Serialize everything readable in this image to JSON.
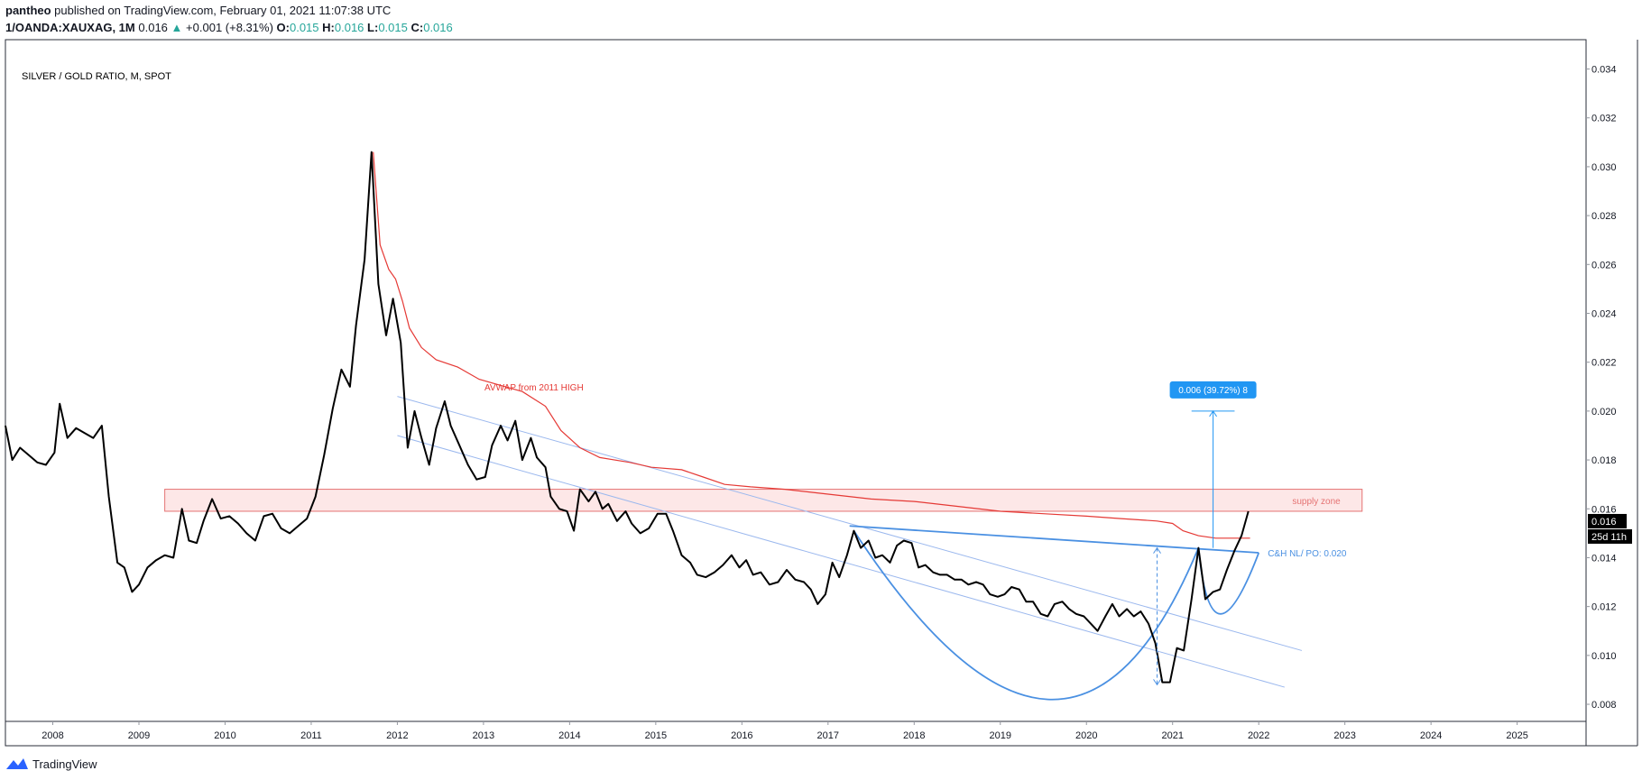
{
  "header": {
    "author": "pantheo",
    "published_text": " published on TradingView.com, February 01, 2021 11:07:38 UTC",
    "symbol": "1/OANDA:XAUXAG, 1M",
    "last": "0.016",
    "change_arrow": "▲",
    "change": "+0.001 (+8.31%)",
    "o_label": "O:",
    "o_value": "0.015",
    "h_label": "H:",
    "h_value": "0.016",
    "l_label": "L:",
    "l_value": "0.015",
    "c_label": "C:",
    "c_value": "0.016"
  },
  "footer": {
    "brand": "TradingView",
    "logo_icon": "tradingview-logo-icon"
  },
  "colors": {
    "price_line": "#000000",
    "avwap": "#e53935",
    "cup_handle": "#4a90e2",
    "channel": "#9bb8ee",
    "supply_fill": "#fde3e3",
    "supply_border": "#e57373",
    "measure": "#2196f3",
    "last_price_bg": "#000000"
  },
  "chart_data": {
    "type": "line",
    "title": "SILVER / GOLD RATIO, M, SPOT",
    "xlabel": "",
    "ylabel": "",
    "x_range": [
      2007.45,
      2025.8
    ],
    "ylim": [
      0.0073,
      0.0352
    ],
    "grid": false,
    "x_ticks": [
      "2008",
      "2009",
      "2010",
      "2011",
      "2012",
      "2013",
      "2014",
      "2015",
      "2016",
      "2017",
      "2018",
      "2019",
      "2020",
      "2021",
      "2022",
      "2023",
      "2024",
      "2025"
    ],
    "y_ticks": [
      "0.008",
      "0.010",
      "0.012",
      "0.014",
      "0.016",
      "0.018",
      "0.020",
      "0.022",
      "0.024",
      "0.026",
      "0.028",
      "0.030",
      "0.032",
      "0.034"
    ],
    "last_price_label": "0.016",
    "countdown_label": "25d 11h",
    "series": [
      {
        "name": "",
        "points": [
          [
            2007.45,
            0.0194
          ],
          [
            2007.53,
            0.018
          ],
          [
            2007.62,
            0.0185
          ],
          [
            2007.72,
            0.0182
          ],
          [
            2007.82,
            0.0179
          ],
          [
            2007.92,
            0.0178
          ],
          [
            2008.02,
            0.0183
          ],
          [
            2008.08,
            0.0203
          ],
          [
            2008.17,
            0.0189
          ],
          [
            2008.27,
            0.0193
          ],
          [
            2008.37,
            0.0191
          ],
          [
            2008.47,
            0.0189
          ],
          [
            2008.57,
            0.0194
          ],
          [
            2008.65,
            0.0165
          ],
          [
            2008.75,
            0.0138
          ],
          [
            2008.83,
            0.0136
          ],
          [
            2008.92,
            0.0126
          ],
          [
            2009.0,
            0.0129
          ],
          [
            2009.1,
            0.0136
          ],
          [
            2009.2,
            0.0139
          ],
          [
            2009.3,
            0.0141
          ],
          [
            2009.4,
            0.014
          ],
          [
            2009.5,
            0.016
          ],
          [
            2009.58,
            0.0147
          ],
          [
            2009.67,
            0.0146
          ],
          [
            2009.75,
            0.0155
          ],
          [
            2009.85,
            0.0164
          ],
          [
            2009.95,
            0.0156
          ],
          [
            2010.05,
            0.0157
          ],
          [
            2010.15,
            0.0154
          ],
          [
            2010.25,
            0.015
          ],
          [
            2010.35,
            0.0147
          ],
          [
            2010.45,
            0.0157
          ],
          [
            2010.55,
            0.0158
          ],
          [
            2010.65,
            0.0152
          ],
          [
            2010.75,
            0.015
          ],
          [
            2010.85,
            0.0153
          ],
          [
            2010.95,
            0.0156
          ],
          [
            2011.05,
            0.0165
          ],
          [
            2011.15,
            0.0182
          ],
          [
            2011.25,
            0.0201
          ],
          [
            2011.35,
            0.0217
          ],
          [
            2011.45,
            0.021
          ],
          [
            2011.52,
            0.0235
          ],
          [
            2011.62,
            0.0262
          ],
          [
            2011.7,
            0.0306
          ],
          [
            2011.78,
            0.0252
          ],
          [
            2011.87,
            0.0231
          ],
          [
            2011.95,
            0.0246
          ],
          [
            2012.04,
            0.0228
          ],
          [
            2012.12,
            0.0185
          ],
          [
            2012.2,
            0.02
          ],
          [
            2012.28,
            0.0189
          ],
          [
            2012.37,
            0.0178
          ],
          [
            2012.45,
            0.0193
          ],
          [
            2012.55,
            0.0204
          ],
          [
            2012.62,
            0.0194
          ],
          [
            2012.72,
            0.0186
          ],
          [
            2012.82,
            0.0178
          ],
          [
            2012.92,
            0.0172
          ],
          [
            2013.02,
            0.0173
          ],
          [
            2013.1,
            0.0186
          ],
          [
            2013.2,
            0.0194
          ],
          [
            2013.28,
            0.0188
          ],
          [
            2013.37,
            0.0196
          ],
          [
            2013.45,
            0.018
          ],
          [
            2013.55,
            0.0189
          ],
          [
            2013.62,
            0.0181
          ],
          [
            2013.72,
            0.0177
          ],
          [
            2013.78,
            0.0165
          ],
          [
            2013.88,
            0.016
          ],
          [
            2013.97,
            0.0159
          ],
          [
            2014.05,
            0.0151
          ],
          [
            2014.12,
            0.0168
          ],
          [
            2014.22,
            0.0163
          ],
          [
            2014.3,
            0.0167
          ],
          [
            2014.38,
            0.016
          ],
          [
            2014.45,
            0.0162
          ],
          [
            2014.55,
            0.0155
          ],
          [
            2014.65,
            0.0159
          ],
          [
            2014.72,
            0.0154
          ],
          [
            2014.82,
            0.015
          ],
          [
            2014.92,
            0.0152
          ],
          [
            2015.02,
            0.0158
          ],
          [
            2015.12,
            0.0158
          ],
          [
            2015.2,
            0.0151
          ],
          [
            2015.3,
            0.0141
          ],
          [
            2015.4,
            0.0138
          ],
          [
            2015.48,
            0.0133
          ],
          [
            2015.58,
            0.0132
          ],
          [
            2015.68,
            0.0134
          ],
          [
            2015.78,
            0.0137
          ],
          [
            2015.88,
            0.0141
          ],
          [
            2015.97,
            0.0136
          ],
          [
            2016.05,
            0.0139
          ],
          [
            2016.13,
            0.0133
          ],
          [
            2016.22,
            0.0134
          ],
          [
            2016.32,
            0.0129
          ],
          [
            2016.42,
            0.013
          ],
          [
            2016.52,
            0.0135
          ],
          [
            2016.62,
            0.0131
          ],
          [
            2016.72,
            0.013
          ],
          [
            2016.8,
            0.0127
          ],
          [
            2016.88,
            0.0121
          ],
          [
            2016.97,
            0.0125
          ],
          [
            2017.05,
            0.0138
          ],
          [
            2017.13,
            0.0132
          ],
          [
            2017.22,
            0.0141
          ],
          [
            2017.3,
            0.0151
          ],
          [
            2017.38,
            0.0144
          ],
          [
            2017.47,
            0.0147
          ],
          [
            2017.55,
            0.014
          ],
          [
            2017.63,
            0.0141
          ],
          [
            2017.72,
            0.0138
          ],
          [
            2017.8,
            0.0145
          ],
          [
            2017.88,
            0.0147
          ],
          [
            2017.97,
            0.0146
          ],
          [
            2018.05,
            0.0136
          ],
          [
            2018.13,
            0.0137
          ],
          [
            2018.22,
            0.0134
          ],
          [
            2018.3,
            0.0133
          ],
          [
            2018.38,
            0.0133
          ],
          [
            2018.47,
            0.0131
          ],
          [
            2018.55,
            0.0131
          ],
          [
            2018.63,
            0.0129
          ],
          [
            2018.72,
            0.013
          ],
          [
            2018.8,
            0.0129
          ],
          [
            2018.88,
            0.0125
          ],
          [
            2018.97,
            0.0124
          ],
          [
            2019.05,
            0.0125
          ],
          [
            2019.13,
            0.0128
          ],
          [
            2019.22,
            0.0127
          ],
          [
            2019.3,
            0.0122
          ],
          [
            2019.38,
            0.0122
          ],
          [
            2019.47,
            0.0117
          ],
          [
            2019.55,
            0.0116
          ],
          [
            2019.63,
            0.0121
          ],
          [
            2019.72,
            0.0122
          ],
          [
            2019.8,
            0.0119
          ],
          [
            2019.88,
            0.0117
          ],
          [
            2019.97,
            0.0116
          ],
          [
            2020.05,
            0.0113
          ],
          [
            2020.13,
            0.011
          ],
          [
            2020.22,
            0.0116
          ],
          [
            2020.3,
            0.0121
          ],
          [
            2020.38,
            0.0116
          ],
          [
            2020.47,
            0.0119
          ],
          [
            2020.55,
            0.0116
          ],
          [
            2020.63,
            0.0118
          ],
          [
            2020.72,
            0.0113
          ],
          [
            2020.8,
            0.0105
          ],
          [
            2020.88,
            0.0089
          ],
          [
            2020.97,
            0.0089
          ],
          [
            2021.05,
            0.0103
          ],
          [
            2021.13,
            0.0102
          ],
          [
            2021.22,
            0.0123
          ],
          [
            2021.3,
            0.0144
          ],
          [
            2021.38,
            0.0123
          ],
          [
            2021.47,
            0.0126
          ],
          [
            2021.55,
            0.0127
          ],
          [
            2021.63,
            0.0135
          ],
          [
            2021.72,
            0.0143
          ],
          [
            2021.8,
            0.0149
          ],
          [
            2021.88,
            0.0159
          ]
        ]
      }
    ],
    "avwap": {
      "name": "AVWAP from 2011 HIGH",
      "points": [
        [
          2011.72,
          0.0306
        ],
        [
          2011.8,
          0.0268
        ],
        [
          2011.9,
          0.0258
        ],
        [
          2011.98,
          0.0254
        ],
        [
          2012.06,
          0.0245
        ],
        [
          2012.14,
          0.0234
        ],
        [
          2012.28,
          0.0226
        ],
        [
          2012.45,
          0.0221
        ],
        [
          2012.7,
          0.0218
        ],
        [
          2012.95,
          0.0213
        ],
        [
          2013.25,
          0.021
        ],
        [
          2013.45,
          0.0208
        ],
        [
          2013.72,
          0.0202
        ],
        [
          2013.9,
          0.0192
        ],
        [
          2014.12,
          0.0185
        ],
        [
          2014.35,
          0.0181
        ],
        [
          2014.7,
          0.0179
        ],
        [
          2014.95,
          0.0177
        ],
        [
          2015.3,
          0.0176
        ],
        [
          2015.55,
          0.0173
        ],
        [
          2015.8,
          0.017
        ],
        [
          2016.1,
          0.0169
        ],
        [
          2016.5,
          0.0168
        ],
        [
          2017.0,
          0.0166
        ],
        [
          2017.5,
          0.0164
        ],
        [
          2018.0,
          0.0163
        ],
        [
          2018.5,
          0.0161
        ],
        [
          2019.0,
          0.0159
        ],
        [
          2019.5,
          0.0158
        ],
        [
          2020.0,
          0.0157
        ],
        [
          2020.4,
          0.0156
        ],
        [
          2020.82,
          0.0155
        ],
        [
          2021.0,
          0.0154
        ],
        [
          2021.12,
          0.0151
        ],
        [
          2021.3,
          0.0149
        ],
        [
          2021.5,
          0.0148
        ],
        [
          2021.72,
          0.0148
        ],
        [
          2021.9,
          0.0148
        ]
      ]
    },
    "supply_zone": {
      "label": "supply zone",
      "x_range": [
        2009.3,
        2023.2
      ],
      "y_range": [
        0.0159,
        0.0168
      ]
    },
    "neckline": {
      "label": "C&H NL/ PO: 0.020",
      "from": [
        2017.25,
        0.0153
      ],
      "to": [
        2022.0,
        0.0142
      ]
    },
    "cup": {
      "from": [
        2017.3,
        0.0151
      ],
      "bottom": [
        2019.55,
        0.0082
      ],
      "to": [
        2021.3,
        0.0144
      ]
    },
    "handle": {
      "from": [
        2021.3,
        0.0144
      ],
      "bottom": [
        2021.55,
        0.0117
      ],
      "to": [
        2022.0,
        0.0142
      ]
    },
    "channel_lines": [
      {
        "from": [
          2012.0,
          0.0206
        ],
        "to": [
          2022.5,
          0.0102
        ]
      },
      {
        "from": [
          2012.0,
          0.019
        ],
        "to": [
          2022.3,
          0.0087
        ]
      }
    ],
    "depth_measure": {
      "x": 2020.82,
      "y_range": [
        0.0088,
        0.0144
      ]
    },
    "projection": {
      "x": 2021.47,
      "y_range": [
        0.0144,
        0.02
      ],
      "cap_x_range": [
        2021.22,
        2021.72
      ],
      "label": "0.006 (39.72%) 8"
    }
  }
}
